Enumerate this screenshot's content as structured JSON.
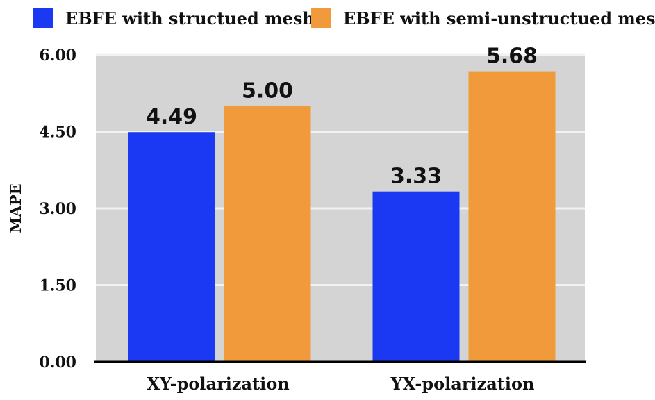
{
  "chart_data": {
    "type": "bar",
    "categories": [
      "XY-polarization",
      "YX-polarization"
    ],
    "series": [
      {
        "name": "EBFE with structued mesh",
        "values": [
          4.49,
          3.33
        ],
        "color": "#1b39f2"
      },
      {
        "name": "EBFE with semi-unstructued mesh",
        "values": [
          5.0,
          5.68
        ],
        "color": "#f09a3b"
      }
    ],
    "value_labels": [
      [
        "4.49",
        "3.33"
      ],
      [
        "5.00",
        "5.68"
      ]
    ],
    "ylabel": "MAPE",
    "xlabel": "",
    "ylim": [
      0,
      6
    ],
    "yticks": [
      0,
      1.5,
      3,
      4.5,
      6
    ],
    "ytick_labels": [
      "0.00",
      "1.50",
      "3.00",
      "4.50",
      "6.00"
    ],
    "grid": true,
    "legend_position": "top",
    "plot_background": "#d4d4d4",
    "grid_color": "#f2f2f2"
  }
}
